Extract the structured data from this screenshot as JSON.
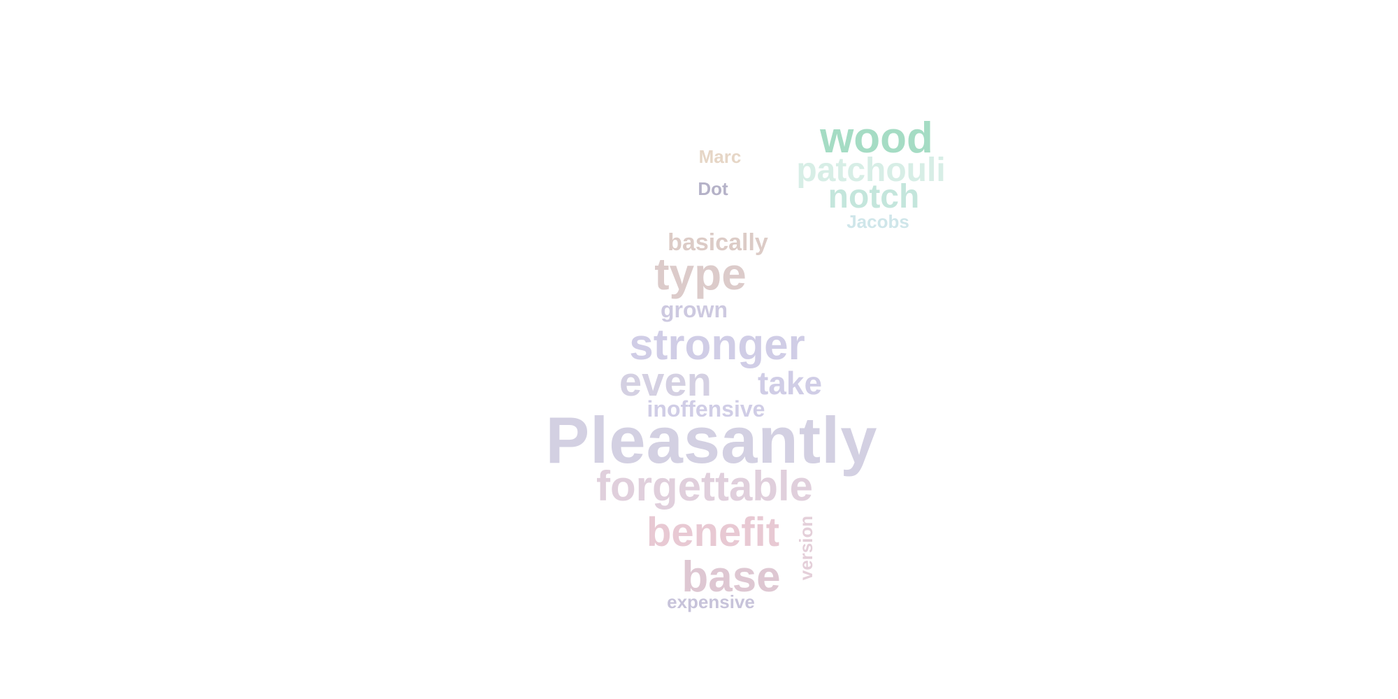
{
  "wordcloud": {
    "words": {
      "pleasantly": {
        "text": "Pleasantly",
        "color": "#d3d0e2"
      },
      "stronger": {
        "text": "stronger",
        "color": "#d0cde6"
      },
      "forgettable": {
        "text": "forgettable",
        "color": "#e0cfdc"
      },
      "benefit": {
        "text": "benefit",
        "color": "#e8c9d3"
      },
      "base": {
        "text": "base",
        "color": "#dec7d2"
      },
      "even": {
        "text": "even",
        "color": "#d4d0e2"
      },
      "type": {
        "text": "type",
        "color": "#dccbca"
      },
      "wood": {
        "text": "wood",
        "color": "#a5dcc4"
      },
      "patchouli": {
        "text": "patchouli",
        "color": "#d7eee6"
      },
      "notch": {
        "text": "notch",
        "color": "#c4e6dc"
      },
      "take": {
        "text": "take",
        "color": "#d0cde6"
      },
      "basically": {
        "text": "basically",
        "color": "#dccbc6"
      },
      "inoffensive": {
        "text": "inoffensive",
        "color": "#d0cde6"
      },
      "grown": {
        "text": "grown",
        "color": "#cdc9e0"
      },
      "version": {
        "text": "version",
        "color": "#e4cfd9"
      },
      "expensive": {
        "text": "expensive",
        "color": "#c7c3da"
      },
      "marc": {
        "text": "Marc",
        "color": "#e6d6c6"
      },
      "dot": {
        "text": "Dot",
        "color": "#b5b2c8"
      },
      "jacobs": {
        "text": "Jacobs",
        "color": "#cfe6ea"
      }
    }
  }
}
